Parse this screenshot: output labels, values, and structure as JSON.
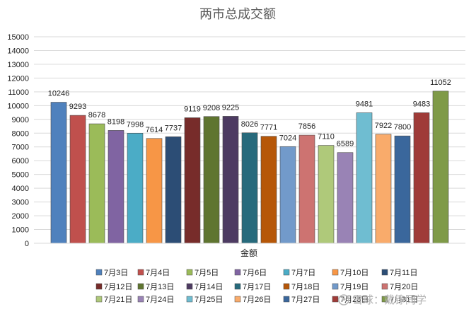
{
  "chart_data": {
    "type": "bar",
    "title": "两市总成交额",
    "categories": [
      "金额"
    ],
    "xlabel": "",
    "ylabel": "",
    "ylim": [
      0,
      15000
    ],
    "ytick_step": 1000,
    "grid": true,
    "legend_position": "bottom",
    "series": [
      {
        "name": "7月3日",
        "value": 10246,
        "color": "#4f81bd"
      },
      {
        "name": "7月4日",
        "value": 9293,
        "color": "#c0504d"
      },
      {
        "name": "7月5日",
        "value": 8678,
        "color": "#9bbb59"
      },
      {
        "name": "7月6日",
        "value": 8198,
        "color": "#8064a2"
      },
      {
        "name": "7月7日",
        "value": 7998,
        "color": "#4bacc6"
      },
      {
        "name": "7月10日",
        "value": 7614,
        "color": "#f79646"
      },
      {
        "name": "7月11日",
        "value": 7737,
        "color": "#2c4d75"
      },
      {
        "name": "7月12日",
        "value": 9119,
        "color": "#772c2a"
      },
      {
        "name": "7月13日",
        "value": 9208,
        "color": "#5f7530"
      },
      {
        "name": "7月14日",
        "value": 9225,
        "color": "#4d3b62"
      },
      {
        "name": "7月17日",
        "value": 8026,
        "color": "#276a7c"
      },
      {
        "name": "7月18日",
        "value": 7771,
        "color": "#b65708"
      },
      {
        "name": "7月19日",
        "value": 7024,
        "color": "#729aca"
      },
      {
        "name": "7月20日",
        "value": 7856,
        "color": "#cd7371"
      },
      {
        "name": "7月21日",
        "value": 7110,
        "color": "#afc97a"
      },
      {
        "name": "7月24日",
        "value": 6589,
        "color": "#9983b5"
      },
      {
        "name": "7月25日",
        "value": 9481,
        "color": "#6fbdd1"
      },
      {
        "name": "7月26日",
        "value": 7922,
        "color": "#f9ab6b"
      },
      {
        "name": "7月27日",
        "value": 7800,
        "color": "#3a679c"
      },
      {
        "name": "7月28日",
        "value": 9483,
        "color": "#9f3b38"
      },
      {
        "name": "7月31日",
        "value": 11052,
        "color": "#7f9a48"
      }
    ]
  },
  "watermark": {
    "text": "雪球：戴铮同学"
  }
}
